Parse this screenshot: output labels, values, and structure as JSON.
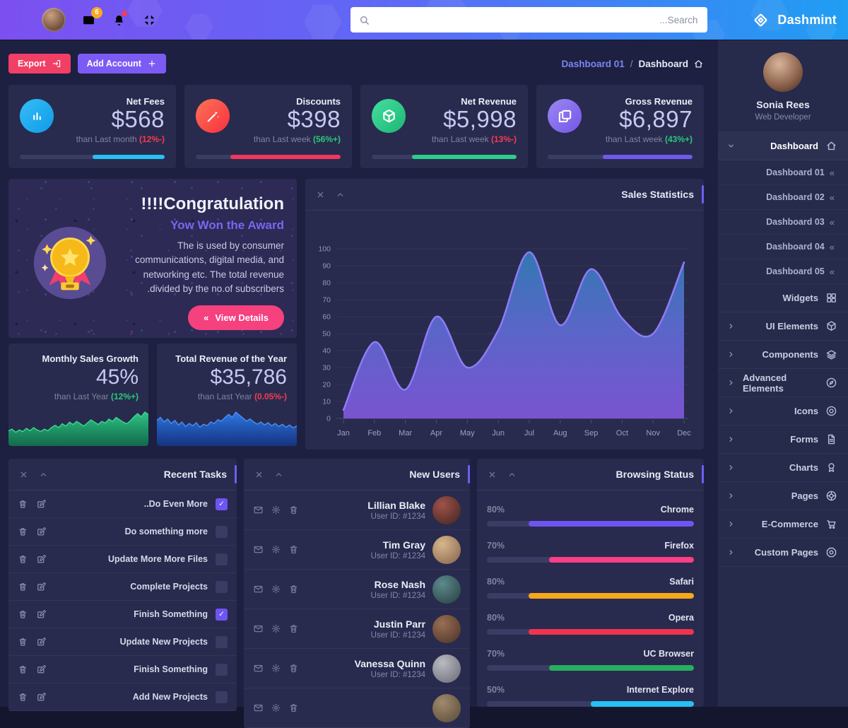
{
  "navbar": {
    "brand": "Dashmint",
    "mail_badge": "6",
    "search_placeholder": "...Search"
  },
  "toolbar": {
    "export_label": "Export",
    "add_account_label": "Add Account",
    "breadcrumb": {
      "link": "Dashboard 01",
      "separator": "/",
      "current": "Dashboard"
    }
  },
  "stat_cards": [
    {
      "title": "Net Fees",
      "value": "$568",
      "compare": "than Last month",
      "delta": "(12%-)",
      "trend": "down",
      "icon": "bars",
      "icon_bg_from": "#36bdf6",
      "icon_bg_to": "#0f9be8",
      "bar_color": "#27c0f5",
      "bar_pct": 50
    },
    {
      "title": "Discounts",
      "value": "$398",
      "compare": "than Last week",
      "delta": "(56%+)",
      "trend": "up",
      "icon": "wand",
      "icon_bg_from": "#fd7357",
      "icon_bg_to": "#f8303e",
      "bar_color": "#f2365b",
      "bar_pct": 76
    },
    {
      "title": "Net Revenue",
      "value": "$5,998",
      "compare": "than Last week",
      "delta": "(13%-)",
      "trend": "down",
      "icon": "cube",
      "icon_bg_from": "#43e0a0",
      "icon_bg_to": "#1db573",
      "bar_color": "#2dcc8e",
      "bar_pct": 72
    },
    {
      "title": "Gross Revenue",
      "value": "$6,897",
      "compare": "than Last week",
      "delta": "(43%+)",
      "trend": "up",
      "icon": "copy",
      "icon_bg_from": "#9d86f2",
      "icon_bg_to": "#7257e8",
      "bar_color": "#7257f0",
      "bar_pct": 62
    }
  ],
  "congrats": {
    "title": "!!!!Congratulation",
    "subtitle": "Yow Won the Award",
    "body": "The is used by consumer communications, digital media, and networking etc. The total revenue .divided by the no.of subscribers",
    "button_icon": "«",
    "button": "View Details"
  },
  "sales_panel": {
    "title": "Sales Statistics"
  },
  "chart_data": {
    "type": "area",
    "title": "Sales Statistics",
    "categories": [
      "Jan",
      "Feb",
      "Mar",
      "Apr",
      "May",
      "Jun",
      "Jul",
      "Aug",
      "Sep",
      "Oct",
      "Nov",
      "Dec"
    ],
    "values": [
      5,
      45,
      17,
      60,
      30,
      52,
      98,
      55,
      88,
      59,
      50,
      92
    ],
    "xlabel": "",
    "ylabel": "",
    "ylim": [
      0,
      100
    ],
    "ytick_step": 10,
    "grid": true,
    "legend": false
  },
  "mini_cards": [
    {
      "title": "Monthly Sales Growth",
      "value": "45%",
      "compare": "than Last Year",
      "delta": "(12%+)",
      "trend": "up",
      "spark_stroke": "#3bd98e",
      "spark_top": "#2fcf87",
      "spark_bottom": "#0e7a4d",
      "spark": [
        16,
        18,
        14,
        17,
        15,
        19,
        16,
        20,
        17,
        15,
        18,
        16,
        20,
        23,
        20,
        25,
        22,
        27,
        24,
        28,
        25,
        22,
        26,
        30,
        27,
        24,
        28,
        26,
        31,
        28,
        33,
        30,
        27,
        25,
        29,
        34,
        38,
        34,
        40,
        37
      ]
    },
    {
      "title": "Total Revenue of the Year",
      "value": "$35,786",
      "compare": "than Last Year",
      "delta": "(0.05%-)",
      "trend": "down",
      "spark_stroke": "#4b8df5",
      "spark_top": "#2e7ef0",
      "spark_bottom": "#12368c",
      "spark": [
        30,
        34,
        28,
        32,
        26,
        30,
        24,
        28,
        22,
        26,
        23,
        27,
        21,
        25,
        23,
        28,
        26,
        31,
        29,
        34,
        38,
        34,
        41,
        37,
        33,
        29,
        32,
        28,
        25,
        28,
        24,
        27,
        23,
        26,
        22,
        25,
        21,
        24,
        20,
        23
      ]
    }
  ],
  "recent_tasks": {
    "title": "Recent Tasks",
    "items": [
      {
        "label": "..Do Even More",
        "checked": true
      },
      {
        "label": "Do something more",
        "checked": false
      },
      {
        "label": "Update More More Files",
        "checked": false
      },
      {
        "label": "Complete Projects",
        "checked": false
      },
      {
        "label": "Finish Something",
        "checked": true
      },
      {
        "label": "Update New Projects",
        "checked": false
      },
      {
        "label": "Finish Something",
        "checked": false
      },
      {
        "label": "Add New Projects",
        "checked": false
      }
    ]
  },
  "new_users": {
    "title": "New Users",
    "users": [
      {
        "name": "Lillian Blake",
        "id": "User ID: #1234",
        "av_from": "#a0524a",
        "av_to": "#3f2420"
      },
      {
        "name": "Tim Gray",
        "id": "User ID: #1234",
        "av_from": "#d8b68c",
        "av_to": "#82624a"
      },
      {
        "name": "Rose Nash",
        "id": "User ID: #1234",
        "av_from": "#5d8a8c",
        "av_to": "#263d3f"
      },
      {
        "name": "Justin Parr",
        "id": "User ID: #1234",
        "av_from": "#9a6f52",
        "av_to": "#483027"
      },
      {
        "name": "Vanessa Quinn",
        "id": "User ID: #1234",
        "av_from": "#b9bac2",
        "av_to": "#686974"
      },
      {
        "name": "",
        "id": "",
        "av_from": "#a08a6d",
        "av_to": "#574836"
      }
    ]
  },
  "browsing": {
    "title": "Browsing Status",
    "items": [
      {
        "pct": "80%",
        "value": 80,
        "name": "Chrome",
        "color": "#6f54f2"
      },
      {
        "pct": "70%",
        "value": 70,
        "name": "Firefox",
        "color": "#fb3e85"
      },
      {
        "pct": "80%",
        "value": 80,
        "name": "Safari",
        "color": "#f7a71b"
      },
      {
        "pct": "80%",
        "value": 80,
        "name": "Opera",
        "color": "#f2334d"
      },
      {
        "pct": "70%",
        "value": 70,
        "name": "UC Browser",
        "color": "#27ae60"
      },
      {
        "pct": "50%",
        "value": 50,
        "name": "Internet Explore",
        "color": "#27c0f5"
      }
    ]
  },
  "sidebar": {
    "profile": {
      "name": "Sonia Rees",
      "role": "Web Developer"
    },
    "sub_caret": "«",
    "menu": [
      {
        "type": "parent",
        "label": "Dashboard",
        "icon": "home",
        "chevron": "chevron-down",
        "active": true
      },
      {
        "type": "sub",
        "label": "Dashboard 01"
      },
      {
        "type": "sub",
        "label": "Dashboard 02"
      },
      {
        "type": "sub",
        "label": "Dashboard 03"
      },
      {
        "type": "sub",
        "label": "Dashboard 04"
      },
      {
        "type": "sub",
        "label": "Dashboard 05"
      },
      {
        "type": "item",
        "label": "Widgets",
        "icon": "grid"
      },
      {
        "type": "parent",
        "label": "UI Elements",
        "icon": "box",
        "chevron": "chevron-right"
      },
      {
        "type": "parent",
        "label": "Components",
        "icon": "layers",
        "chevron": "chevron-right"
      },
      {
        "type": "parent",
        "label": "Advanced Elements",
        "icon": "compass",
        "chevron": "chevron-right"
      },
      {
        "type": "parent",
        "label": "Icons",
        "icon": "disc",
        "chevron": "chevron-right"
      },
      {
        "type": "parent",
        "label": "Forms",
        "icon": "file",
        "chevron": "chevron-right"
      },
      {
        "type": "parent",
        "label": "Charts",
        "icon": "award",
        "chevron": "chevron-right"
      },
      {
        "type": "parent",
        "label": "Pages",
        "icon": "wheel",
        "chevron": "chevron-right"
      },
      {
        "type": "parent",
        "label": "E-Commerce",
        "icon": "cart",
        "chevron": "chevron-right"
      },
      {
        "type": "parent",
        "label": "Custom Pages",
        "icon": "octagon",
        "chevron": "chevron-right"
      }
    ]
  }
}
